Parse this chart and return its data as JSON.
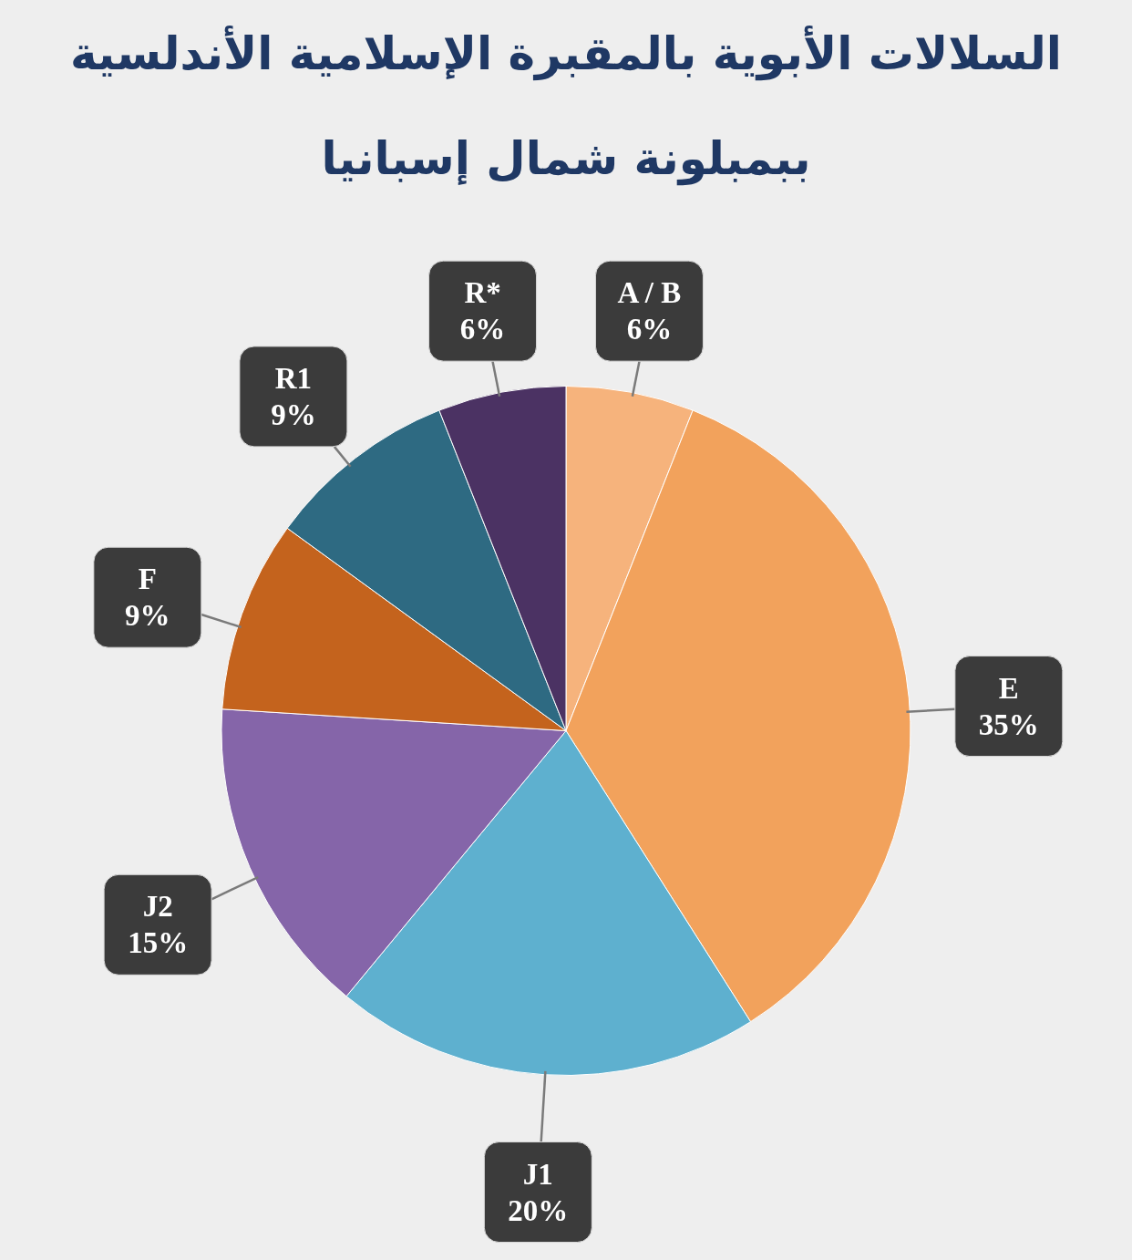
{
  "chart_data": {
    "type": "pie",
    "title": "السلالات الأبوية بالمقبرة الإسلامية الأندلسية\nببمبلونة شمال إسبانيا",
    "categories": [
      "A / B",
      "E",
      "J1",
      "J2",
      "F",
      "R1",
      "R*"
    ],
    "values": [
      6,
      35,
      20,
      15,
      9,
      9,
      6
    ],
    "value_labels": [
      "6%",
      "35%",
      "20%",
      "15%",
      "9%",
      "9%",
      "6%"
    ],
    "colors": [
      "#f6b37c",
      "#f2a25c",
      "#5eb0cf",
      "#8565a9",
      "#c4631d",
      "#2e6a82",
      "#4b3263"
    ],
    "legend": false
  }
}
